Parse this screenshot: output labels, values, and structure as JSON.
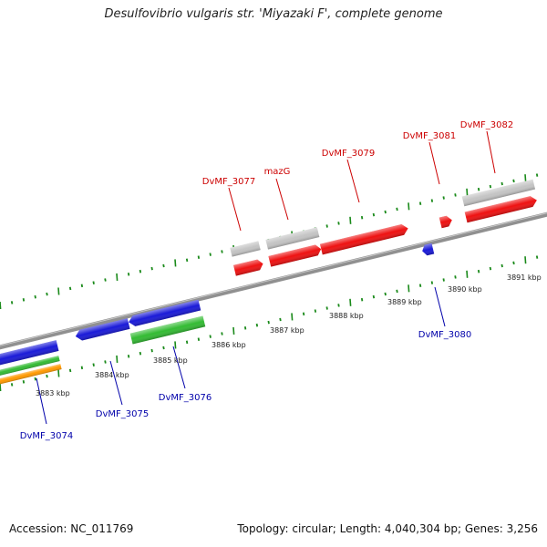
{
  "header": {
    "title": "Desulfovibrio vulgaris str. 'Miyazaki F', complete genome"
  },
  "footer": {
    "accession": "Accession: NC_011769",
    "stats": "Topology: circular; Length: 4,040,304 bp; Genes: 3,256"
  },
  "colors": {
    "backbone": "#909090",
    "tick": "#1a8a1a",
    "gene_red": "#ee1111",
    "gene_blue": "#1a1ad8",
    "gene_green": "#33bb33",
    "gene_orange": "#ff9900",
    "gene_grey": "#c4c4c4",
    "label_red": "#cc0000",
    "label_blue": "#0000aa"
  },
  "scale": {
    "labels": [
      "3883 kbp",
      "3884 kbp",
      "3885 kbp",
      "3886 kbp",
      "3887 kbp",
      "3888 kbp",
      "3889 kbp",
      "3890 kbp",
      "3891 kbp"
    ]
  },
  "genes": {
    "top_strand_labels": [
      "DvMF_3077",
      "mazG",
      "DvMF_3079",
      "DvMF_3081",
      "DvMF_3082"
    ],
    "bottom_strand_labels": [
      "DvMF_3074",
      "DvMF_3075",
      "DvMF_3076",
      "DvMF_3080"
    ]
  }
}
